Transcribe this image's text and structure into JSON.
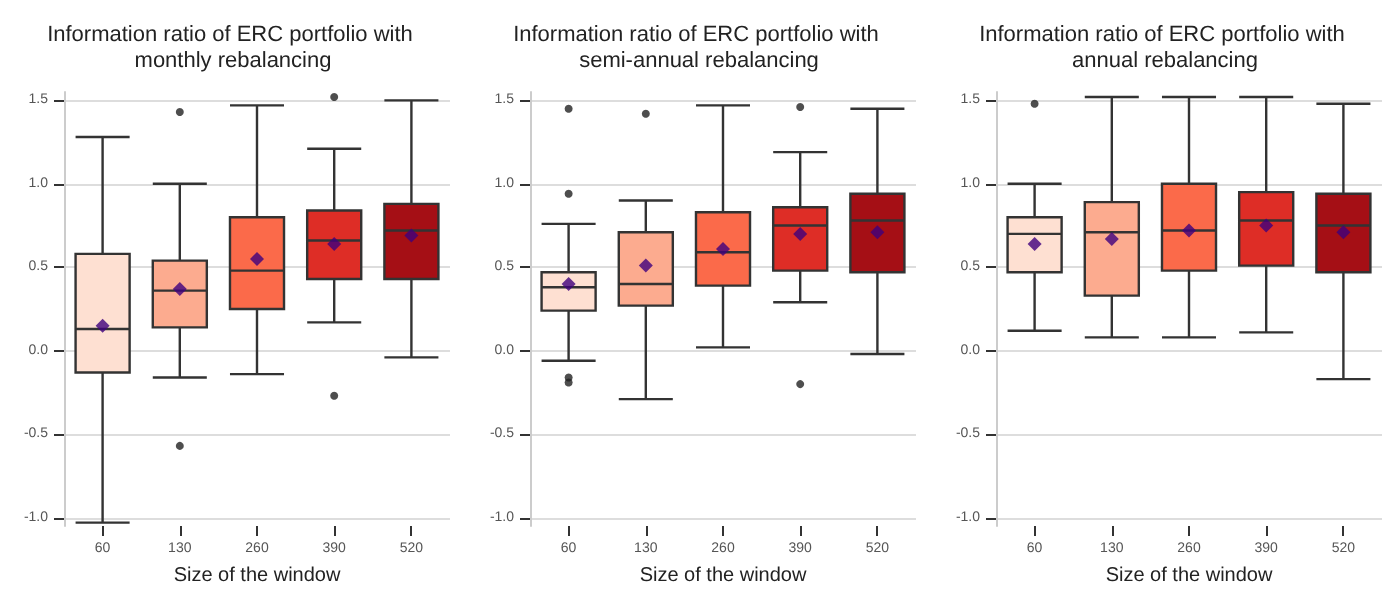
{
  "chart_data": [
    {
      "type": "box",
      "title": "Information ratio of ERC portfolio with monthly rebalancing",
      "xlabel": "Size of the window",
      "categories": [
        "60",
        "130",
        "260",
        "390",
        "520"
      ],
      "colors": [
        "#fee0d2",
        "#fcab8f",
        "#fb6a4a",
        "#de2d26",
        "#a50f15"
      ],
      "boxes": [
        {
          "low": -1.03,
          "q1": -0.13,
          "median": 0.13,
          "q3": 0.58,
          "high": 1.28,
          "mean": 0.15
        },
        {
          "low": -0.16,
          "q1": 0.14,
          "median": 0.36,
          "q3": 0.54,
          "high": 1.0,
          "mean": 0.37,
          "outliers": [
            1.43,
            -0.57
          ]
        },
        {
          "low": -0.14,
          "q1": 0.25,
          "median": 0.48,
          "q3": 0.8,
          "high": 1.47,
          "mean": 0.55
        },
        {
          "low": 0.17,
          "q1": 0.43,
          "median": 0.66,
          "q3": 0.84,
          "high": 1.21,
          "mean": 0.64,
          "outliers": [
            1.52,
            -0.27
          ]
        },
        {
          "low": -0.04,
          "q1": 0.43,
          "median": 0.72,
          "q3": 0.88,
          "high": 1.5,
          "mean": 0.69
        }
      ],
      "ylim": [
        -1.05,
        1.55
      ],
      "yticks": [
        {
          "value": -1,
          "label": "-1.0"
        },
        {
          "value": -0.5,
          "label": "-0.5"
        },
        {
          "value": 0,
          "label": "0.0"
        },
        {
          "value": 0.5,
          "label": "0.5"
        },
        {
          "value": 1,
          "label": "1.0"
        },
        {
          "value": 1.5,
          "label": "1.5"
        }
      ],
      "grid": "y"
    },
    {
      "type": "box",
      "title": "Information ratio of ERC portfolio with semi-annual rebalancing",
      "xlabel": "Size of the window",
      "categories": [
        "60",
        "130",
        "260",
        "390",
        "520"
      ],
      "colors": [
        "#fee0d2",
        "#fcab8f",
        "#fb6a4a",
        "#de2d26",
        "#a50f15"
      ],
      "boxes": [
        {
          "low": -0.06,
          "q1": 0.24,
          "median": 0.38,
          "q3": 0.47,
          "high": 0.76,
          "mean": 0.4,
          "outliers": [
            1.45,
            0.94,
            -0.16,
            -0.19
          ]
        },
        {
          "low": -0.29,
          "q1": 0.27,
          "median": 0.4,
          "q3": 0.71,
          "high": 0.9,
          "mean": 0.51,
          "outliers": [
            1.42
          ]
        },
        {
          "low": 0.02,
          "q1": 0.39,
          "median": 0.59,
          "q3": 0.83,
          "high": 1.47,
          "mean": 0.61
        },
        {
          "low": 0.29,
          "q1": 0.48,
          "median": 0.75,
          "q3": 0.86,
          "high": 1.19,
          "mean": 0.7,
          "outliers": [
            1.46,
            -0.2
          ]
        },
        {
          "low": -0.02,
          "q1": 0.47,
          "median": 0.78,
          "q3": 0.94,
          "high": 1.45,
          "mean": 0.71
        }
      ],
      "ylim": [
        -1.05,
        1.55
      ],
      "yticks": [
        {
          "value": -1,
          "label": "-1.0"
        },
        {
          "value": -0.5,
          "label": "-0.5"
        },
        {
          "value": 0,
          "label": "0.0"
        },
        {
          "value": 0.5,
          "label": "0.5"
        },
        {
          "value": 1,
          "label": "1.0"
        },
        {
          "value": 1.5,
          "label": "1.5"
        }
      ],
      "grid": "y"
    },
    {
      "type": "box",
      "title": "Information ratio of ERC portfolio with annual rebalancing",
      "xlabel": "Size of the window",
      "categories": [
        "60",
        "130",
        "260",
        "390",
        "520"
      ],
      "colors": [
        "#fee0d2",
        "#fcab8f",
        "#fb6a4a",
        "#de2d26",
        "#a50f15"
      ],
      "boxes": [
        {
          "low": 0.12,
          "q1": 0.47,
          "median": 0.7,
          "q3": 0.8,
          "high": 1.0,
          "mean": 0.64,
          "outliers": [
            1.48
          ]
        },
        {
          "low": 0.08,
          "q1": 0.33,
          "median": 0.71,
          "q3": 0.89,
          "high": 1.52,
          "mean": 0.67
        },
        {
          "low": 0.08,
          "q1": 0.48,
          "median": 0.72,
          "q3": 1.0,
          "high": 1.52,
          "mean": 0.72
        },
        {
          "low": 0.11,
          "q1": 0.51,
          "median": 0.78,
          "q3": 0.95,
          "high": 1.52,
          "mean": 0.75
        },
        {
          "low": -0.17,
          "q1": 0.47,
          "median": 0.75,
          "q3": 0.94,
          "high": 1.48,
          "mean": 0.71
        }
      ],
      "ylim": [
        -1.05,
        1.55
      ],
      "yticks": [
        {
          "value": -1,
          "label": "-1.0"
        },
        {
          "value": -0.5,
          "label": "-0.5"
        },
        {
          "value": 0,
          "label": "0.0"
        },
        {
          "value": 0.5,
          "label": "0.5"
        },
        {
          "value": 1,
          "label": "1.0"
        },
        {
          "value": 1.5,
          "label": "1.5"
        }
      ],
      "grid": "y"
    }
  ]
}
